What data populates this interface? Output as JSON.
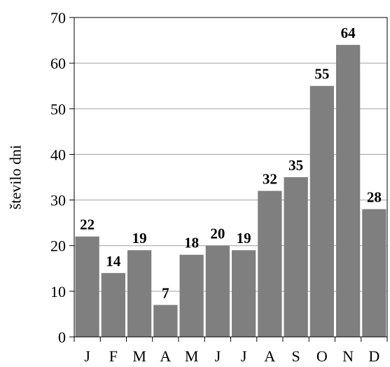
{
  "chart_data": {
    "type": "bar",
    "title": "",
    "xlabel": "",
    "ylabel": "število dni",
    "categories": [
      "J",
      "F",
      "M",
      "A",
      "M",
      "J",
      "J",
      "A",
      "S",
      "O",
      "N",
      "D"
    ],
    "values": [
      22,
      14,
      19,
      7,
      18,
      20,
      19,
      32,
      35,
      55,
      64,
      28
    ],
    "ylim": [
      0,
      70
    ],
    "yticks": [
      0,
      10,
      20,
      30,
      40,
      50,
      60,
      70
    ],
    "grid": true,
    "legend": "none",
    "colors": {
      "bar": "#7f7f7f",
      "grid": "#a0a0a0",
      "axis": "#000000"
    }
  }
}
